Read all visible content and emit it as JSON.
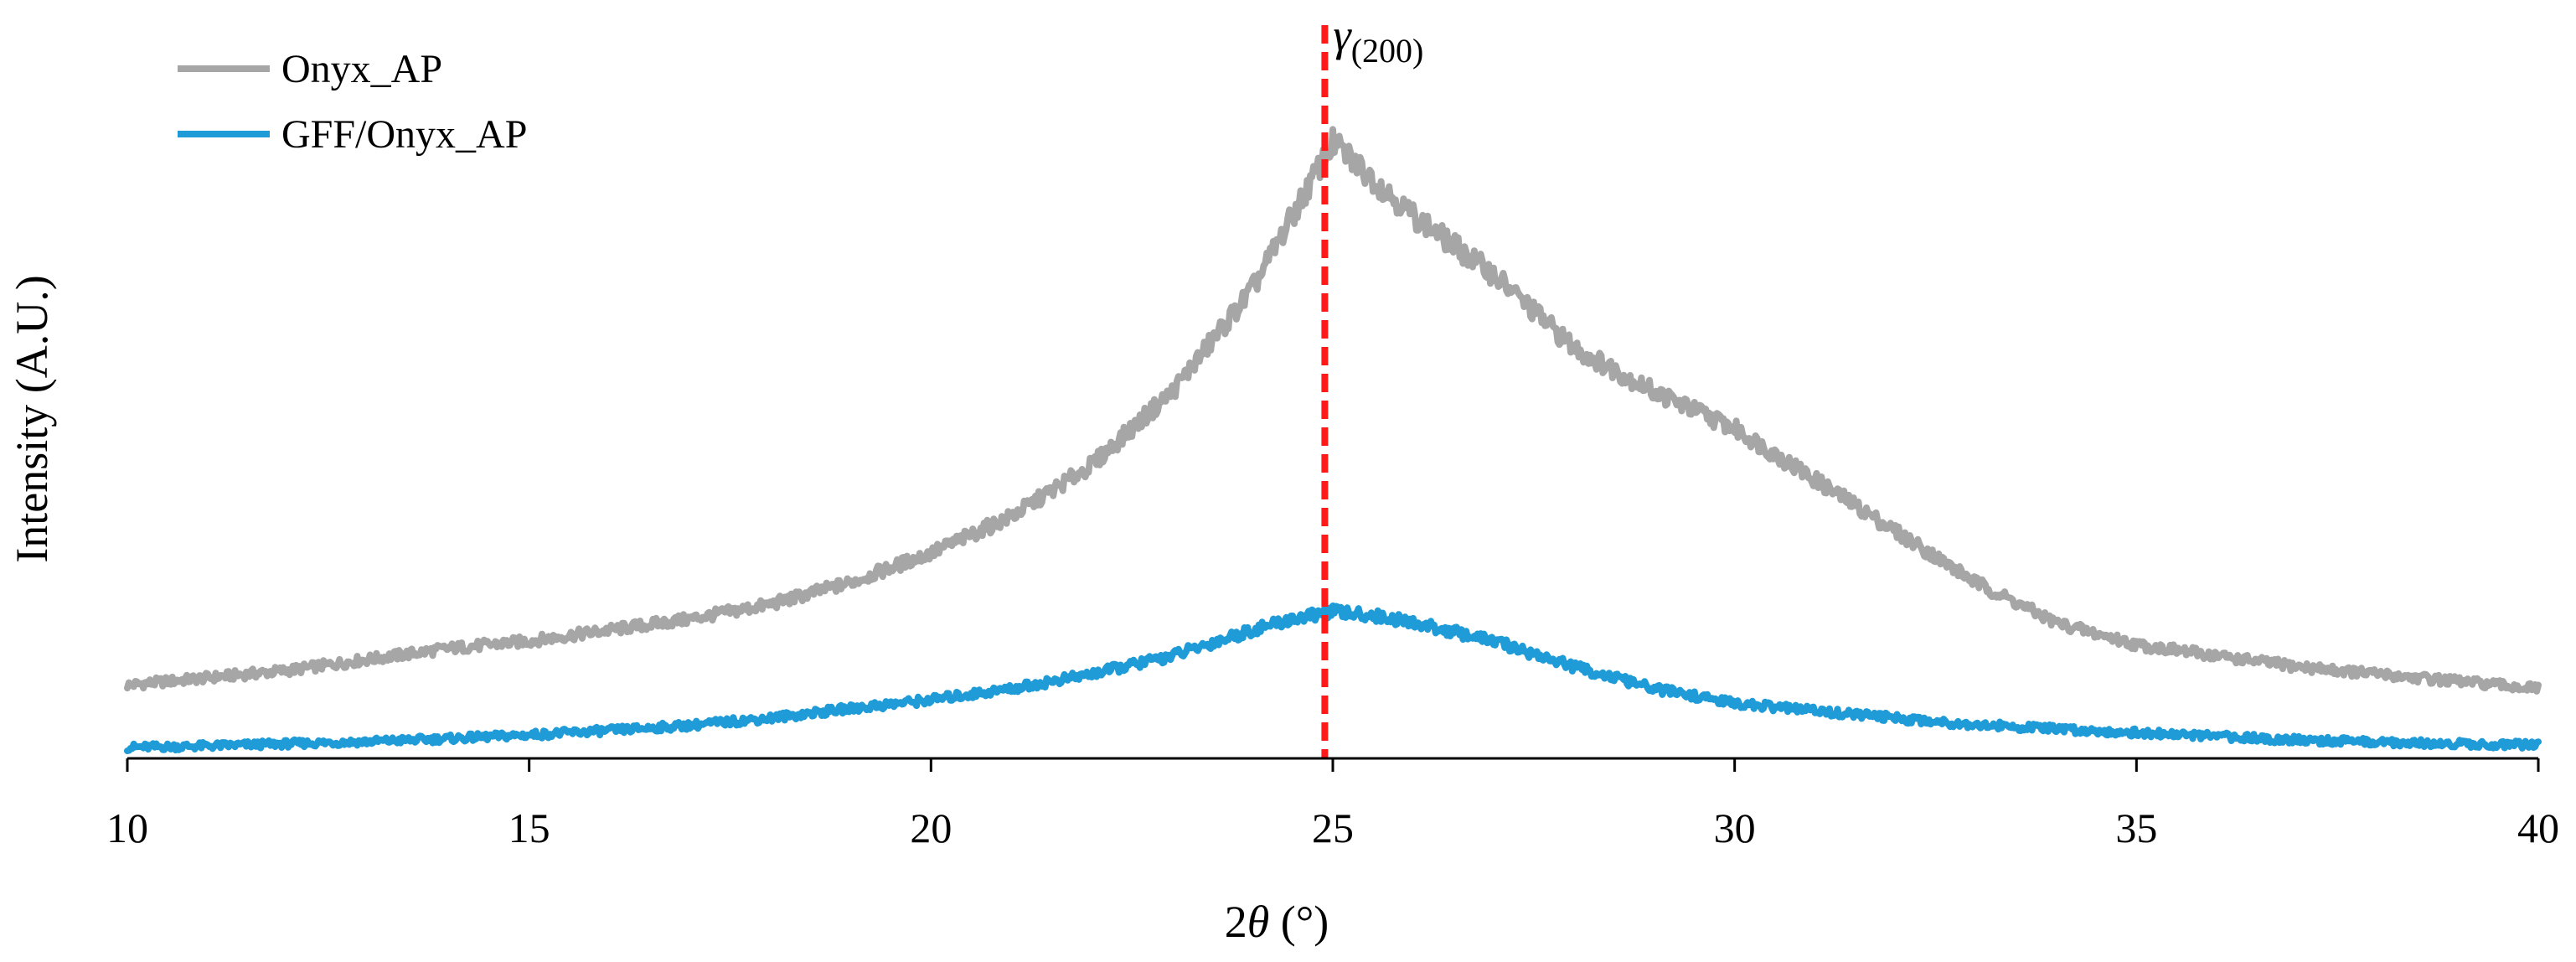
{
  "chart_data": {
    "type": "line",
    "title": "",
    "xlabel_prefix": "2",
    "xlabel_symbol": "θ",
    "xlabel_suffix": " (°)",
    "ylabel": "Intensity (A.U.)",
    "xlim": [
      10,
      40
    ],
    "ylim": [
      0,
      1.0
    ],
    "xticks": [
      10,
      15,
      20,
      25,
      30,
      35,
      40
    ],
    "yticks_shown": false,
    "grid": false,
    "legend": "top-left",
    "series": [
      {
        "name": "Onyx_AP",
        "color": "#a6a6a6",
        "x": [
          10,
          11,
          12,
          13,
          14,
          15,
          16,
          17,
          18,
          19,
          20,
          21,
          22,
          23,
          24,
          24.5,
          25,
          25.5,
          26,
          27,
          28,
          29,
          30,
          31,
          32,
          33,
          34,
          35,
          36,
          37,
          38,
          39,
          40
        ],
        "y": [
          0.1,
          0.11,
          0.12,
          0.135,
          0.15,
          0.16,
          0.175,
          0.19,
          0.21,
          0.24,
          0.28,
          0.33,
          0.4,
          0.5,
          0.64,
          0.74,
          0.84,
          0.79,
          0.74,
          0.66,
          0.56,
          0.5,
          0.45,
          0.38,
          0.31,
          0.24,
          0.185,
          0.155,
          0.14,
          0.125,
          0.115,
          0.105,
          0.095
        ]
      },
      {
        "name": "GFF/Onyx_AP",
        "color": "#1f9bd7",
        "x": [
          10,
          11,
          12,
          13,
          14,
          15,
          16,
          17,
          18,
          19,
          20,
          21,
          22,
          23,
          24,
          24.5,
          25,
          25.5,
          26,
          27,
          28,
          29,
          30,
          31,
          32,
          33,
          34,
          35,
          36,
          37,
          38,
          39,
          40
        ],
        "y": [
          0.015,
          0.017,
          0.02,
          0.023,
          0.027,
          0.032,
          0.038,
          0.045,
          0.055,
          0.068,
          0.08,
          0.095,
          0.115,
          0.14,
          0.175,
          0.19,
          0.2,
          0.195,
          0.185,
          0.16,
          0.125,
          0.095,
          0.075,
          0.065,
          0.055,
          0.046,
          0.04,
          0.035,
          0.03,
          0.025,
          0.022,
          0.02,
          0.018
        ]
      }
    ],
    "annotations": [
      {
        "type": "vertical-dashed-line",
        "x": 24.9,
        "color": "#ff1a1a",
        "label_main": "γ",
        "label_sub": "(200)"
      }
    ]
  }
}
